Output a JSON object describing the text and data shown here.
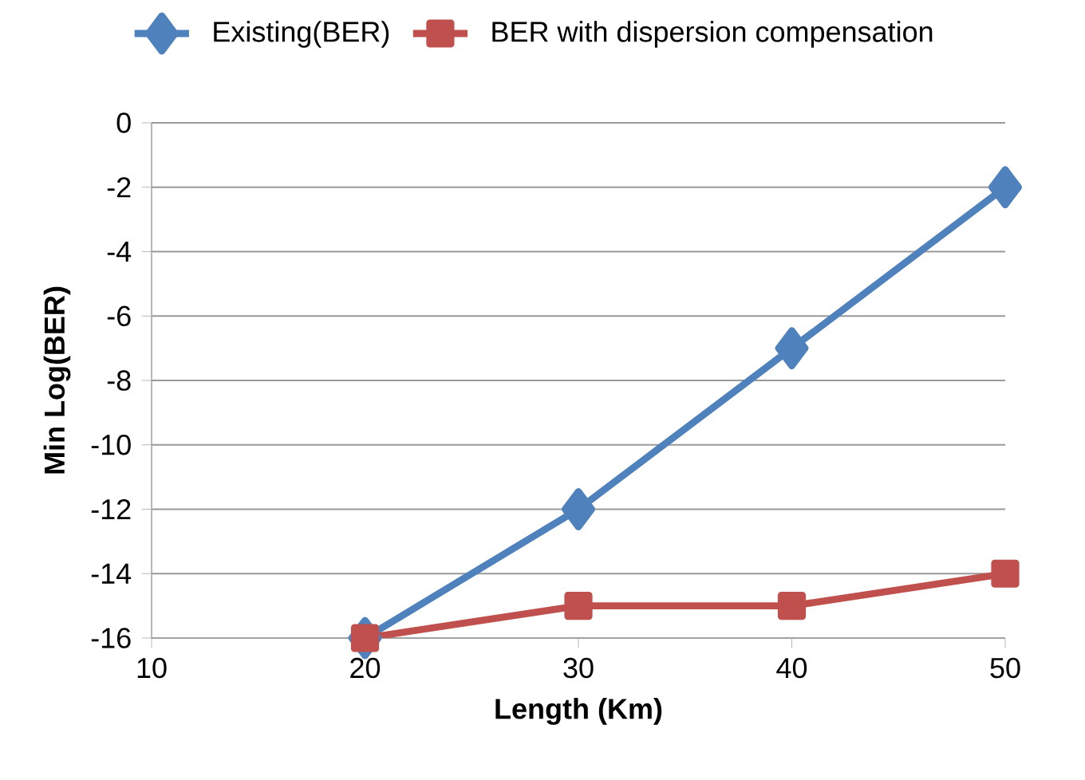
{
  "chart_data": {
    "type": "line",
    "xlabel": "Length (Km)",
    "ylabel": "Min Log(BER)",
    "xlim": [
      10,
      50
    ],
    "xticks": [
      10,
      20,
      30,
      40,
      50
    ],
    "ylim": [
      -16,
      0
    ],
    "yticks": [
      0,
      -2,
      -4,
      -6,
      -8,
      -10,
      -12,
      -14,
      -16
    ],
    "grid": "y",
    "legend": "top",
    "line_style": "solid",
    "series": [
      {
        "name": "Existing(BER)",
        "color": "#4f81bd",
        "marker": "diamond",
        "x": [
          20,
          30,
          40,
          50
        ],
        "values": [
          -16,
          -12,
          -7,
          -2
        ]
      },
      {
        "name": "BER with dispersion compensation",
        "color": "#c0504d",
        "marker": "square",
        "x": [
          20,
          30,
          40,
          50
        ],
        "values": [
          -16,
          -15,
          -15,
          -14
        ]
      }
    ]
  }
}
